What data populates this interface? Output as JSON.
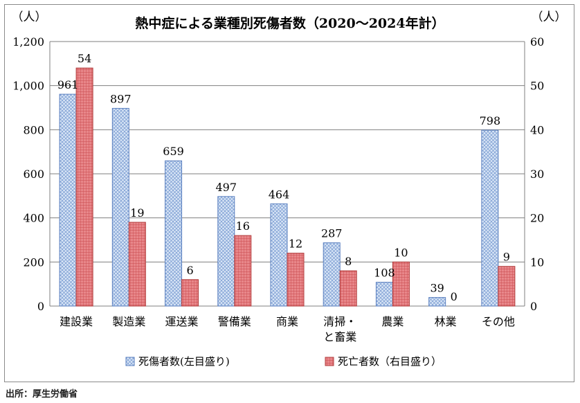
{
  "chart_data": {
    "type": "bar",
    "title": "熱中症による業種別死傷者数（2020～2024年計）",
    "left_unit": "（人）",
    "right_unit": "（人）",
    "categories": [
      [
        "建設業"
      ],
      [
        "製造業"
      ],
      [
        "運送業"
      ],
      [
        "警備業"
      ],
      [
        "商業"
      ],
      [
        "清掃・",
        "と畜業"
      ],
      [
        "農業"
      ],
      [
        "林業"
      ],
      [
        "その他"
      ]
    ],
    "series": [
      {
        "name": "死傷者数(左目盛り)",
        "axis": "left",
        "values": [
          961,
          897,
          659,
          497,
          464,
          287,
          108,
          39,
          798
        ],
        "color": "#a8c4e8",
        "border": "#5a7fbf"
      },
      {
        "name": "死亡者数（右目盛り）",
        "axis": "right",
        "values": [
          54,
          19,
          6,
          16,
          12,
          8,
          10,
          0,
          9
        ],
        "color": "#e06b6b",
        "border": "#b03a3a"
      }
    ],
    "y_left": {
      "min": 0,
      "max": 1200,
      "ticks": [
        "0",
        "200",
        "400",
        "600",
        "800",
        "1,000",
        "1,200"
      ]
    },
    "y_right": {
      "min": 0,
      "max": 60,
      "ticks": [
        "0",
        "10",
        "20",
        "30",
        "40",
        "50",
        "60"
      ]
    },
    "grid": true,
    "legend_position": "bottom"
  },
  "source": "出所：厚生労働省"
}
